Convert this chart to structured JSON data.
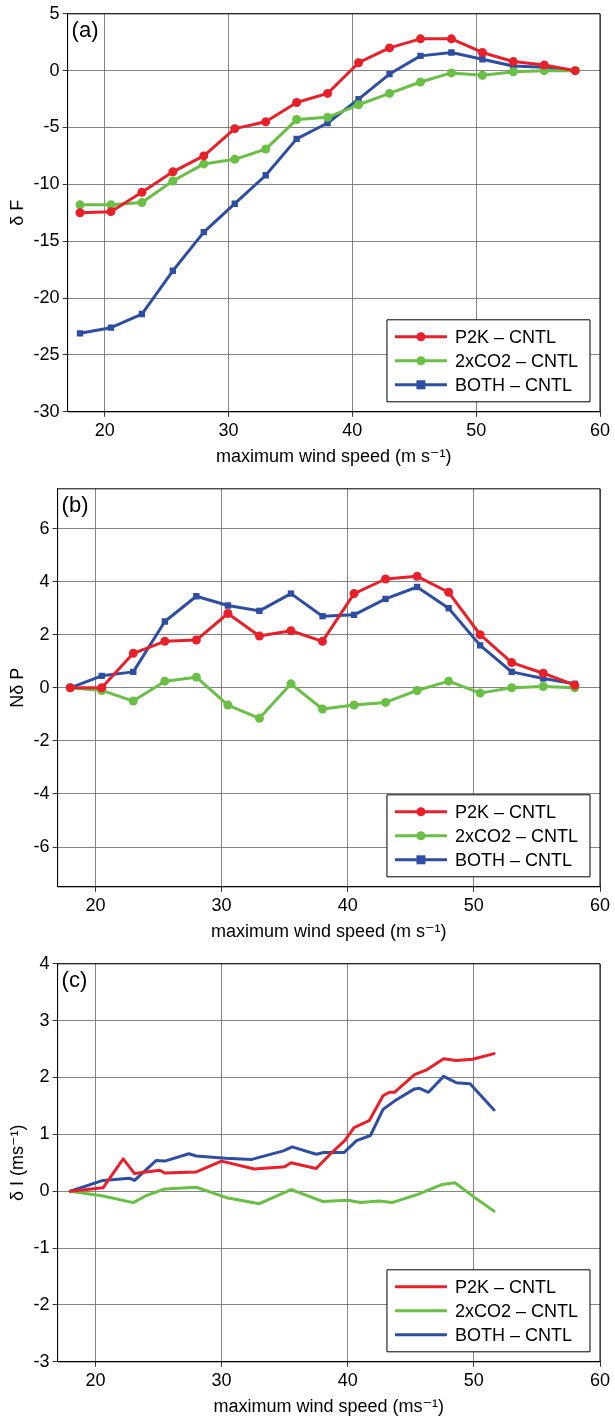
{
  "chart_data": [
    {
      "type": "line",
      "xlabel": "maximum wind speed (m s⁻¹)",
      "ylabel": "δ F",
      "annotations": [
        "(a)"
      ],
      "xlim": [
        17,
        60
      ],
      "xticks": [
        20,
        30,
        40,
        50,
        60
      ],
      "ylim": [
        -30,
        5
      ],
      "yticks": [
        -30,
        -25,
        -20,
        -15,
        -10,
        -5,
        0,
        5
      ],
      "grid": true,
      "legend": "bottom right",
      "line_style": "solid",
      "x": [
        18,
        20.5,
        23,
        25.5,
        28,
        30.5,
        33,
        35.5,
        38,
        40.5,
        43,
        45.5,
        48,
        50.5,
        53,
        55.5,
        58
      ],
      "series": [
        {
          "name": "P2K – CNTL",
          "color": "#e8202a",
          "marker": "circle",
          "values": [
            -12.5,
            -12.4,
            -10.7,
            -8.9,
            -7.5,
            -5.1,
            -4.5,
            -2.8,
            -2.0,
            0.7,
            2.0,
            2.8,
            2.8,
            1.6,
            0.8,
            0.5,
            0.0
          ]
        },
        {
          "name": "2xCO2 – CNTL",
          "color": "#6abf45",
          "marker": "circle",
          "values": [
            -11.8,
            -11.8,
            -11.6,
            -9.7,
            -8.2,
            -7.8,
            -6.9,
            -4.3,
            -4.1,
            -3.0,
            -2.0,
            -1.0,
            -0.2,
            -0.4,
            -0.1,
            0.0,
            0.0
          ]
        },
        {
          "name": "BOTH – CNTL",
          "color": "#2e4ea3",
          "marker": "square",
          "values": [
            -23.1,
            -22.6,
            -21.4,
            -17.6,
            -14.2,
            -11.7,
            -9.2,
            -6.0,
            -4.6,
            -2.5,
            -0.3,
            1.3,
            1.6,
            1.0,
            0.4,
            0.3,
            0.0
          ]
        }
      ]
    },
    {
      "type": "line",
      "xlabel": "maximum wind speed (m s⁻¹)",
      "ylabel": "Nδ P",
      "annotations": [
        "(b)"
      ],
      "xlim": [
        17,
        60
      ],
      "xticks": [
        20,
        30,
        40,
        50,
        60
      ],
      "ylim": [
        -7.5,
        7.5
      ],
      "yticks": [
        -6,
        -4,
        -2,
        0,
        2,
        4,
        6
      ],
      "grid": true,
      "legend": "bottom right",
      "line_style": "solid",
      "x": [
        18,
        20.5,
        23,
        25.5,
        28,
        30.5,
        33,
        35.5,
        38,
        40.5,
        43,
        45.5,
        48,
        50.5,
        53,
        55.5,
        58
      ],
      "series": [
        {
          "name": "P2K – CNTL",
          "color": "#e8202a",
          "marker": "circle",
          "values": [
            0.0,
            0.0,
            1.3,
            1.75,
            1.8,
            2.8,
            1.95,
            2.15,
            1.75,
            3.55,
            4.1,
            4.2,
            3.6,
            2.0,
            0.95,
            0.55,
            0.1
          ]
        },
        {
          "name": "2xCO2 – CNTL",
          "color": "#6abf45",
          "marker": "circle",
          "values": [
            0.0,
            -0.1,
            -0.5,
            0.25,
            0.4,
            -0.65,
            -1.15,
            0.15,
            -0.8,
            -0.65,
            -0.55,
            -0.1,
            0.25,
            -0.2,
            0.0,
            0.05,
            0.0
          ]
        },
        {
          "name": "BOTH – CNTL",
          "color": "#2e4ea3",
          "marker": "square",
          "values": [
            0.0,
            0.45,
            0.6,
            2.5,
            3.45,
            3.1,
            2.9,
            3.55,
            2.7,
            2.75,
            3.35,
            3.8,
            3.0,
            1.6,
            0.6,
            0.35,
            0.15
          ]
        }
      ]
    },
    {
      "type": "line",
      "xlabel": "maximum wind speed (ms⁻¹)",
      "ylabel": "δ I (ms⁻¹)",
      "annotations": [
        "(c)"
      ],
      "xlim": [
        17,
        60
      ],
      "xticks": [
        20,
        30,
        40,
        50,
        60
      ],
      "ylim": [
        -3,
        4
      ],
      "yticks": [
        -3,
        -2,
        -1,
        0,
        1,
        2,
        3,
        4
      ],
      "grid": true,
      "legend": "bottom right",
      "line_style": "solid",
      "marker": "none",
      "series": [
        {
          "name": "P2K – CNTL",
          "color": "#e8202a",
          "x": [
            18,
            20.6,
            22.2,
            23.1,
            25.1,
            25.5,
            28,
            30,
            32.6,
            35,
            35.5,
            37.5,
            38.6,
            39.8,
            40.5,
            41.7,
            42.8,
            43.3,
            43.7,
            45.3,
            46.3,
            47.6,
            48.6,
            49.9,
            51.6
          ],
          "values": [
            0,
            0.06,
            0.57,
            0.31,
            0.37,
            0.32,
            0.34,
            0.53,
            0.39,
            0.43,
            0.5,
            0.4,
            0.65,
            0.9,
            1.12,
            1.24,
            1.68,
            1.74,
            1.74,
            2.05,
            2.14,
            2.33,
            2.3,
            2.32,
            2.42
          ]
        },
        {
          "name": "2xCO2 – CNTL",
          "color": "#6abf45",
          "x": [
            18,
            20.5,
            23,
            24,
            25.5,
            28,
            30.5,
            33,
            35.5,
            38,
            40,
            41,
            42.5,
            43.5,
            45.5,
            47.5,
            48.5,
            50,
            51.6
          ],
          "values": [
            0,
            -0.08,
            -0.2,
            -0.08,
            0.04,
            0.07,
            -0.12,
            -0.22,
            0.03,
            -0.18,
            -0.16,
            -0.2,
            -0.17,
            -0.2,
            -0.06,
            0.12,
            0.15,
            -0.1,
            -0.35
          ]
        },
        {
          "name": "BOTH – CNTL",
          "color": "#2e4ea3",
          "x": [
            18,
            20.6,
            22.7,
            23.1,
            24.8,
            25.5,
            27.4,
            28,
            30.3,
            32.4,
            34.9,
            35.6,
            37.5,
            38.1,
            39.7,
            40.7,
            41.8,
            42.8,
            43.8,
            45.3,
            45.7,
            46.4,
            47.6,
            48.6,
            49.7,
            51.6
          ],
          "values": [
            0,
            0.19,
            0.23,
            0.19,
            0.54,
            0.53,
            0.66,
            0.62,
            0.58,
            0.56,
            0.71,
            0.78,
            0.65,
            0.68,
            0.68,
            0.89,
            0.98,
            1.44,
            1.6,
            1.8,
            1.81,
            1.74,
            2.02,
            1.91,
            1.89,
            1.43
          ]
        }
      ]
    }
  ]
}
